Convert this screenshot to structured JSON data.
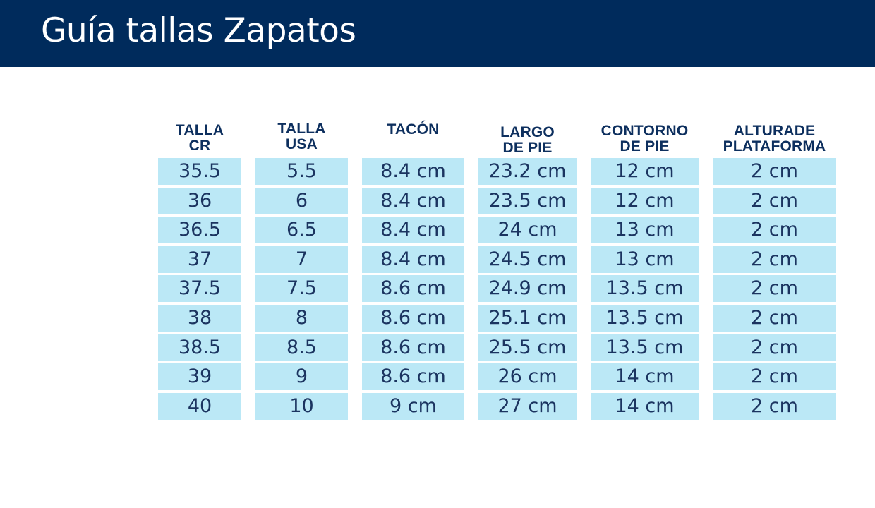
{
  "title": "Guía tallas Zapatos",
  "colors": {
    "header_bg": "#002b5c",
    "title_text": "#ffffff",
    "column_header_text": "#0d2f5e",
    "cell_bg": "#bbe8f6",
    "cell_text": "#1b3460"
  },
  "table": {
    "columns": [
      {
        "line1": "TALLA",
        "line2": "CR"
      },
      {
        "line1": "TALLA",
        "line2": "USA"
      },
      {
        "line1": "TACÓN",
        "line2": ""
      },
      {
        "line1": "LARGO",
        "line2": "DE PIE"
      },
      {
        "line1": "CONTORNO",
        "line2": "DE PIE"
      },
      {
        "line1": "ALTURADE",
        "line2": "PLATAFORMA"
      }
    ],
    "rows": [
      [
        "35.5",
        "5.5",
        "8.4 cm",
        "23.2 cm",
        "12 cm",
        "2 cm"
      ],
      [
        "36",
        "6",
        "8.4 cm",
        "23.5 cm",
        "12 cm",
        "2 cm"
      ],
      [
        "36.5",
        "6.5",
        "8.4 cm",
        "24 cm",
        "13 cm",
        "2 cm"
      ],
      [
        "37",
        "7",
        "8.4 cm",
        "24.5 cm",
        "13 cm",
        "2 cm"
      ],
      [
        "37.5",
        "7.5",
        "8.6 cm",
        "24.9 cm",
        "13.5 cm",
        "2 cm"
      ],
      [
        "38",
        "8",
        "8.6 cm",
        "25.1 cm",
        "13.5 cm",
        "2 cm"
      ],
      [
        "38.5",
        "8.5",
        "8.6 cm",
        "25.5 cm",
        "13.5 cm",
        "2 cm"
      ],
      [
        "39",
        "9",
        "8.6 cm",
        "26 cm",
        "14 cm",
        "2 cm"
      ],
      [
        "40",
        "10",
        "9 cm",
        "27 cm",
        "14 cm",
        "2 cm"
      ]
    ]
  }
}
